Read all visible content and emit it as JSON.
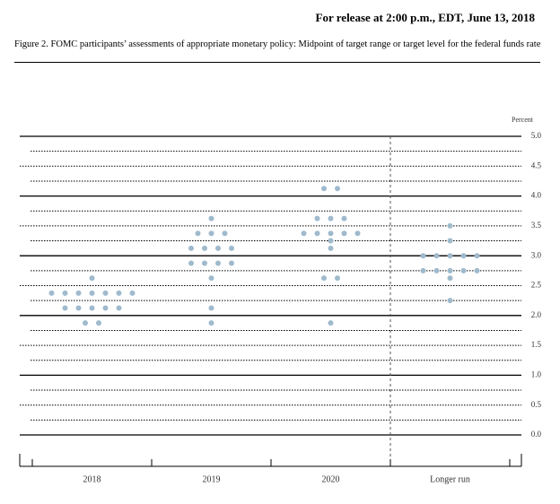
{
  "chart_data": {
    "type": "dot",
    "release": "For release at 2:00 p.m., EDT, June 13, 2018",
    "title": "Figure 2. FOMC participants’ assessments of appropriate monetary policy: Midpoint of target range or target level for the federal funds rate",
    "y_label": "Percent",
    "categories": [
      "2018",
      "2019",
      "2020",
      "Longer run"
    ],
    "values": [
      [
        2.625,
        2.375,
        2.375,
        2.375,
        2.375,
        2.375,
        2.375,
        2.375,
        2.125,
        2.125,
        2.125,
        2.125,
        2.125,
        1.875,
        1.875
      ],
      [
        3.625,
        3.375,
        3.375,
        3.375,
        3.125,
        3.125,
        3.125,
        3.125,
        2.875,
        2.875,
        2.875,
        2.875,
        2.625,
        2.125,
        1.875
      ],
      [
        4.125,
        4.125,
        3.625,
        3.625,
        3.625,
        3.375,
        3.375,
        3.375,
        3.375,
        3.375,
        3.25,
        3.125,
        2.625,
        2.625,
        1.875
      ],
      [
        3.5,
        3.25,
        3.0,
        3.0,
        3.0,
        3.0,
        3.0,
        2.75,
        2.75,
        2.75,
        2.75,
        2.75,
        2.625,
        2.25
      ]
    ],
    "color": "#9fbacd",
    "ylim": [
      0,
      5
    ],
    "yticks": [
      {
        "value": 0,
        "label": "0.0"
      },
      {
        "value": 0.5,
        "label": "0.5"
      },
      {
        "value": 1,
        "label": "1.0"
      },
      {
        "value": 1.5,
        "label": "1.5"
      },
      {
        "value": 2,
        "label": "2.0"
      },
      {
        "value": 2.5,
        "label": "2.5"
      },
      {
        "value": 3,
        "label": "3.0"
      },
      {
        "value": 3.5,
        "label": "3.5"
      },
      {
        "value": 4,
        "label": "4.0"
      },
      {
        "value": 4.5,
        "label": "4.5"
      },
      {
        "value": 5,
        "label": "5.0"
      }
    ],
    "minor_yticks": [
      0.25,
      0.75,
      1.25,
      1.75,
      2.25,
      2.75,
      3.25,
      3.75,
      4.25,
      4.75
    ],
    "grid": true
  }
}
